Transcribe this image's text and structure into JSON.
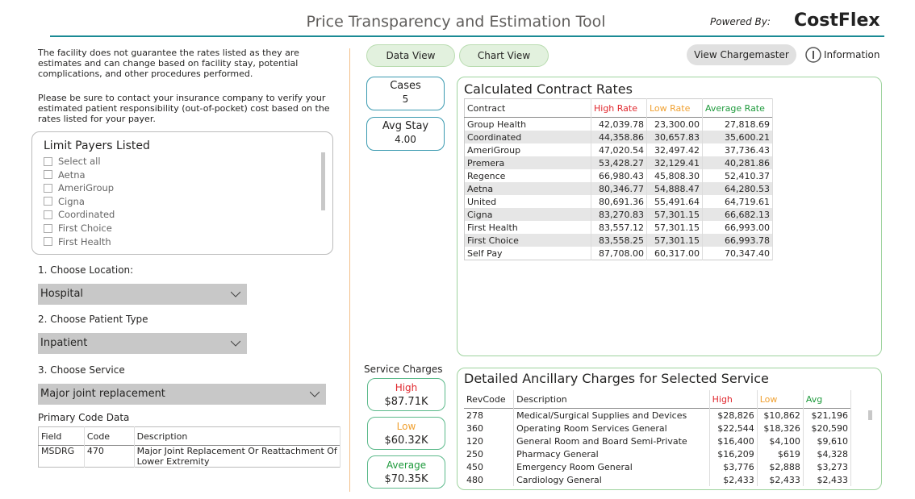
{
  "header": {
    "title": "Price Transparency and Estimation Tool",
    "powered_by": "Powered By:",
    "logo": "CostFlex"
  },
  "disclaimer": [
    "The facility does not guarantee the rates listed as they are estimates and can change based on facility stay, potential complications, and other procedures performed.",
    "Please be sure to contact your insurance company to verify your estimated patient responsibility (out-of-pocket) cost based on the rates listed for your payer."
  ],
  "limit_payers": {
    "title": "Limit Payers Listed",
    "options": [
      "Select all",
      "Aetna",
      "AmeriGroup",
      "Cigna",
      "Coordinated",
      "First Choice",
      "First Health"
    ]
  },
  "filters": [
    {
      "label": "1. Choose Location:",
      "value": "Hospital"
    },
    {
      "label": "2. Choose Patient Type",
      "value": "Inpatient"
    },
    {
      "label": "3. Choose Service",
      "value": "Major joint replacement"
    }
  ],
  "primary_code": {
    "title": "Primary Code Data",
    "columns": [
      "Field",
      "Code",
      "Description"
    ],
    "rows": [
      [
        "MSDRG",
        "470",
        "Major Joint Replacement Or Reattachment Of Lower Extremity"
      ]
    ]
  },
  "tabs": [
    "Data View",
    "Chart View"
  ],
  "buttons": {
    "chargemaster": "View Chargemaster",
    "information": "Information"
  },
  "stats": [
    {
      "label": "Cases",
      "value": "5"
    },
    {
      "label": "Avg Stay",
      "value": "4.00"
    }
  ],
  "service_charges": {
    "title": "Service Charges",
    "items": [
      {
        "label": "High",
        "value": "$87.71K"
      },
      {
        "label": "Low",
        "value": "$60.32K"
      },
      {
        "label": "Average",
        "value": "$70.35K"
      }
    ]
  },
  "contract_rates": {
    "title": "Calculated Contract Rates",
    "columns": [
      "Contract",
      "High Rate",
      "Low Rate",
      "Average Rate"
    ],
    "rows": [
      [
        "Group Health",
        "42,039.78",
        "23,300.00",
        "27,818.69"
      ],
      [
        "Coordinated",
        "44,358.86",
        "30,657.83",
        "35,600.21"
      ],
      [
        "AmeriGroup",
        "47,020.54",
        "32,497.42",
        "37,736.43"
      ],
      [
        "Premera",
        "53,428.27",
        "32,129.41",
        "40,281.86"
      ],
      [
        "Regence",
        "66,980.43",
        "45,808.30",
        "52,410.37"
      ],
      [
        "Aetna",
        "80,346.77",
        "54,888.47",
        "64,280.53"
      ],
      [
        "United",
        "80,691.36",
        "55,491.64",
        "64,719.61"
      ],
      [
        "Cigna",
        "83,270.83",
        "57,301.15",
        "66,682.13"
      ],
      [
        "First Health",
        "83,557.12",
        "57,301.15",
        "66,993.00"
      ],
      [
        "First Choice",
        "83,558.25",
        "57,301.15",
        "66,993.78"
      ],
      [
        "Self Pay",
        "87,708.00",
        "60,317.00",
        "70,347.40"
      ]
    ]
  },
  "ancillary": {
    "title": "Detailed Ancillary Charges for Selected Service",
    "columns": [
      "RevCode",
      "Description",
      "High",
      "Low",
      "Avg"
    ],
    "rows": [
      [
        "278",
        "Medical/Surgical Supplies and Devices",
        "$28,826",
        "$10,862",
        "$21,196"
      ],
      [
        "360",
        "Operating Room Services General",
        "$22,544",
        "$18,326",
        "$20,590"
      ],
      [
        "120",
        "General Room and Board Semi-Private",
        "$16,400",
        "$4,100",
        "$9,610"
      ],
      [
        "250",
        "Pharmacy General",
        "$16,209",
        "$619",
        "$4,328"
      ],
      [
        "450",
        "Emergency Room General",
        "$3,776",
        "$2,888",
        "$3,273"
      ],
      [
        "480",
        "Cardiology General",
        "$2,433",
        "$2,433",
        "$2,433"
      ]
    ]
  }
}
